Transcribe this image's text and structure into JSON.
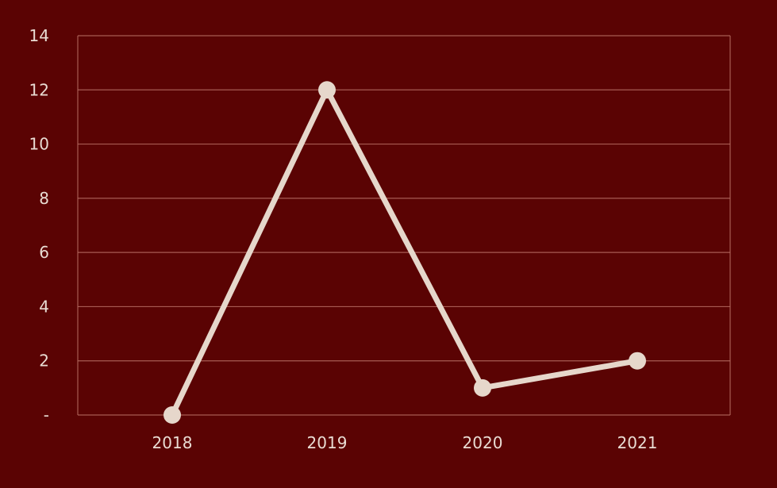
{
  "chart_data": {
    "type": "line",
    "title": "",
    "xlabel": "",
    "ylabel": "",
    "categories": [
      "2018",
      "2019",
      "2020",
      "2021"
    ],
    "series": [
      {
        "values": [
          0,
          12,
          1,
          2
        ]
      }
    ],
    "ylim": [
      0,
      14
    ],
    "y_ticks": [
      0,
      2,
      4,
      6,
      8,
      10,
      12,
      14
    ],
    "y_tick_labels": [
      "-",
      "2",
      "4",
      "6",
      "8",
      "10",
      "12",
      "14"
    ],
    "grid": true,
    "legend": "none",
    "colors": {
      "background": "#5a0303",
      "line": "#e6d7cb",
      "gridline": "#b56b62",
      "tick_text": "#e9dcd3"
    }
  }
}
